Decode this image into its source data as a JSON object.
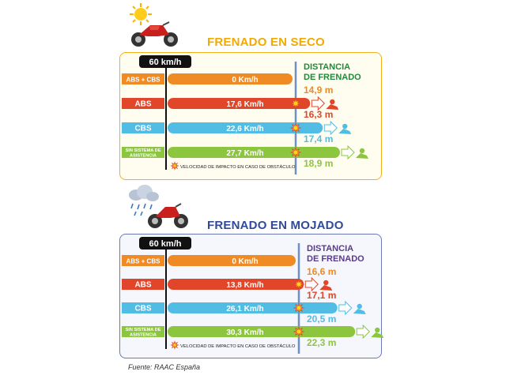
{
  "source": "Fuente: RAAC España",
  "chart_data": [
    {
      "type": "bar",
      "title": "FRENADO EN SECO",
      "speed_label": "60 km/h",
      "distance_label": [
        "DISTANCIA",
        "DE FRENADO"
      ],
      "impact_note": "VELOCIDAD DE IMPACTO EN CASO DE OBSTÁCULO",
      "categories": [
        "ABS + CBS",
        "ABS",
        "CBS",
        "SIN SISTEMA DE ASISTENCIA"
      ],
      "impact_speed_labels": [
        "0 Km/h",
        "17,6 Km/h",
        "22,6 Km/h",
        "27,7 Km/h"
      ],
      "distance_labels": [
        "14,9 m",
        "16,3 m",
        "17,4 m",
        "18,9 m"
      ],
      "impact_speed_kmh": [
        0,
        17.6,
        22.6,
        27.7
      ],
      "braking_distance_m": [
        14.9,
        16.3,
        17.4,
        18.9
      ],
      "colors": [
        "#f08a24",
        "#e2462a",
        "#52bde4",
        "#8cc63f"
      ]
    },
    {
      "type": "bar",
      "title": "FRENADO EN MOJADO",
      "speed_label": "60 km/h",
      "distance_label": [
        "DISTANCIA",
        "DE FRENADO"
      ],
      "impact_note": "VELOCIDAD DE IMPACTO EN CASO DE OBSTÁCULO",
      "categories": [
        "ABS + CBS",
        "ABS",
        "CBS",
        "SIN SISTEMA DE ASISTENCIA"
      ],
      "impact_speed_labels": [
        "0 Km/h",
        "13,8 Km/h",
        "26,1 Km/h",
        "30,3 Km/h"
      ],
      "distance_labels": [
        "16,6 m",
        "17,1 m",
        "20,5 m",
        "22,3 m"
      ],
      "impact_speed_kmh": [
        0,
        13.8,
        26.1,
        30.3
      ],
      "braking_distance_m": [
        16.6,
        17.1,
        20.5,
        22.3
      ],
      "colors": [
        "#f08a24",
        "#e2462a",
        "#52bde4",
        "#8cc63f"
      ]
    }
  ],
  "icons": {
    "dry_weather": "sun-icon",
    "wet_weather": "rain-cloud-icon",
    "vehicle": "motorcycle-icon",
    "impact": "impact-star-icon",
    "continuation": "arrow-right-icon",
    "crash": "crash-rider-icon"
  }
}
